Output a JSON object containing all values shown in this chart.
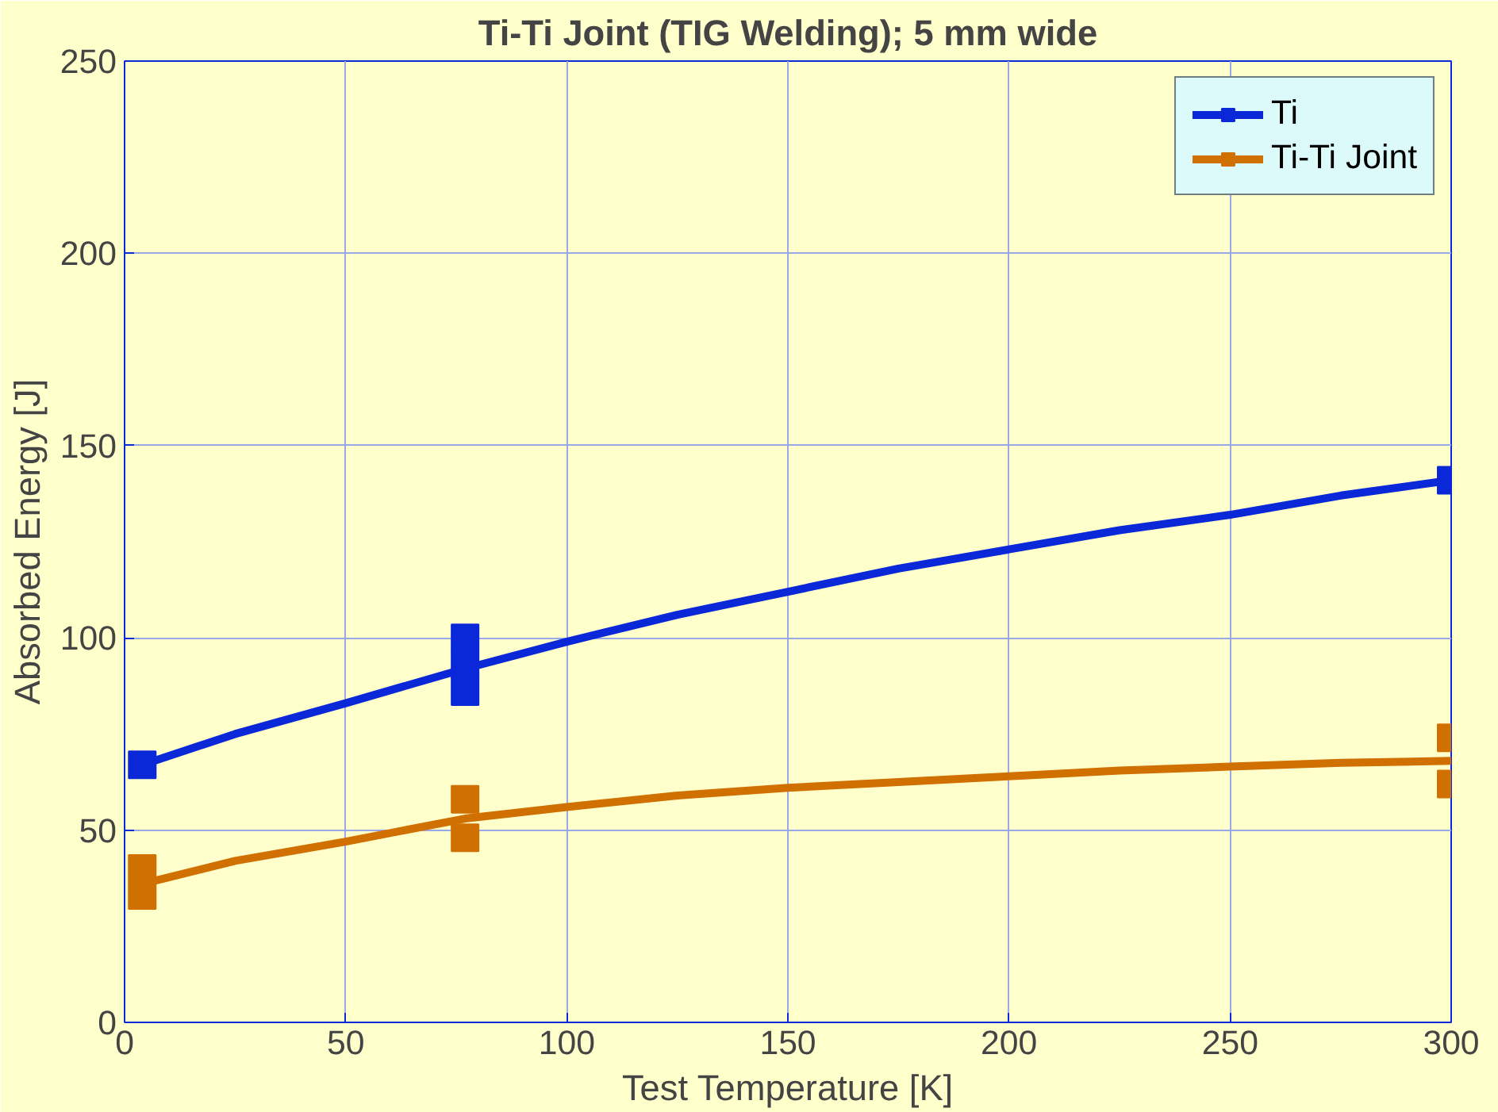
{
  "chart_data": {
    "type": "scatter",
    "title": "Ti-Ti Joint (TIG Welding); 5 mm wide",
    "xlabel": "Test Temperature [K]",
    "ylabel": "Absorbed Energy [J]",
    "xlim": [
      0,
      300
    ],
    "xticks": [
      0,
      50,
      100,
      150,
      200,
      250,
      300
    ],
    "ylim": [
      0,
      250
    ],
    "yticks": [
      0,
      50,
      100,
      150,
      200,
      250
    ],
    "grid": true,
    "legend": "top right",
    "series": [
      {
        "name": "Ti",
        "color": "#0a28d8",
        "marker": "square",
        "x": [
          4,
          77,
          77,
          77,
          300
        ],
        "values": [
          67,
          86,
          93,
          100,
          141
        ]
      },
      {
        "color": "#0a28d8",
        "type": "line",
        "x": [
          4,
          25,
          50,
          77,
          100,
          125,
          150,
          175,
          200,
          225,
          250,
          275,
          300
        ],
        "values": [
          67,
          75,
          83,
          92,
          99,
          106,
          112,
          118,
          123,
          128,
          132,
          137,
          141
        ]
      },
      {
        "name": "Ti-Ti Joint",
        "color": "#d07000",
        "marker": "square",
        "x": [
          4,
          4,
          77,
          77,
          300,
          300
        ],
        "values": [
          33,
          40,
          48,
          58,
          62,
          74
        ]
      },
      {
        "color": "#d07000",
        "type": "line",
        "x": [
          4,
          25,
          50,
          77,
          100,
          125,
          150,
          175,
          200,
          225,
          250,
          275,
          300
        ],
        "values": [
          36,
          42,
          47,
          53,
          56,
          59,
          61,
          62.5,
          64,
          65.5,
          66.5,
          67.5,
          68
        ]
      }
    ]
  }
}
